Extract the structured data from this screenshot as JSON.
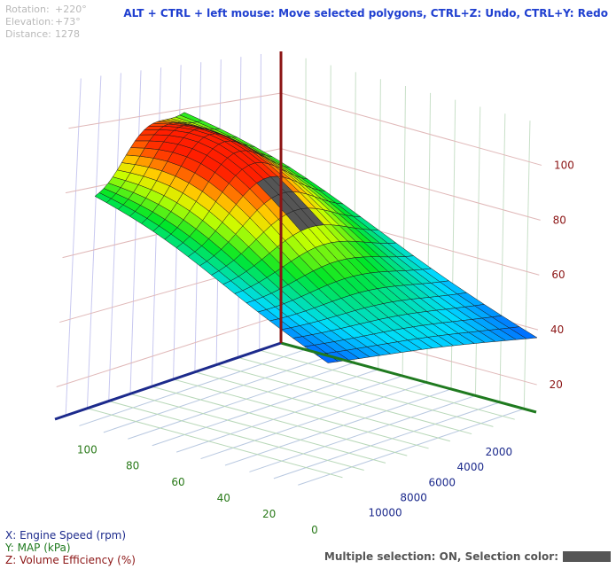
{
  "view": {
    "rotation_label": "Rotation:",
    "rotation_value": "+220°",
    "elevation_label": "Elevation:",
    "elevation_value": "+73°",
    "distance_label": "Distance:",
    "distance_value": "1278"
  },
  "hint": "ALT + CTRL + left mouse: Move selected polygons, CTRL+Z: Undo, CTRL+Y: Redo",
  "axes": {
    "x_label": "X: Engine Speed (rpm)",
    "y_label": "Y: MAP (kPa)",
    "z_label": "Z: Volume Efficiency (%)",
    "x_ticks": [
      "2000",
      "4000",
      "6000",
      "8000",
      "10000"
    ],
    "y_ticks": [
      "0",
      "20",
      "40",
      "60",
      "80",
      "100"
    ],
    "z_ticks": [
      "20",
      "40",
      "60",
      "80",
      "100"
    ]
  },
  "status": {
    "text": "Multiple selection: ON, Selection color:",
    "selection_color": "#555555"
  },
  "colors": {
    "x_axis": "#1c2a8c",
    "y_axis": "#1f7a1f",
    "z_axis": "#8b1414",
    "x_tick": "#1c2a8c",
    "y_tick": "#2a7a1a",
    "z_tick": "#8b1414"
  },
  "chart_data": {
    "type": "surface",
    "x_label": "Engine Speed (rpm)",
    "y_label": "MAP (kPa)",
    "z_label": "Volume Efficiency (%)",
    "x_range": [
      0,
      11000
    ],
    "y_range": [
      0,
      105
    ],
    "z_range": [
      10,
      115
    ],
    "grid": true
  }
}
